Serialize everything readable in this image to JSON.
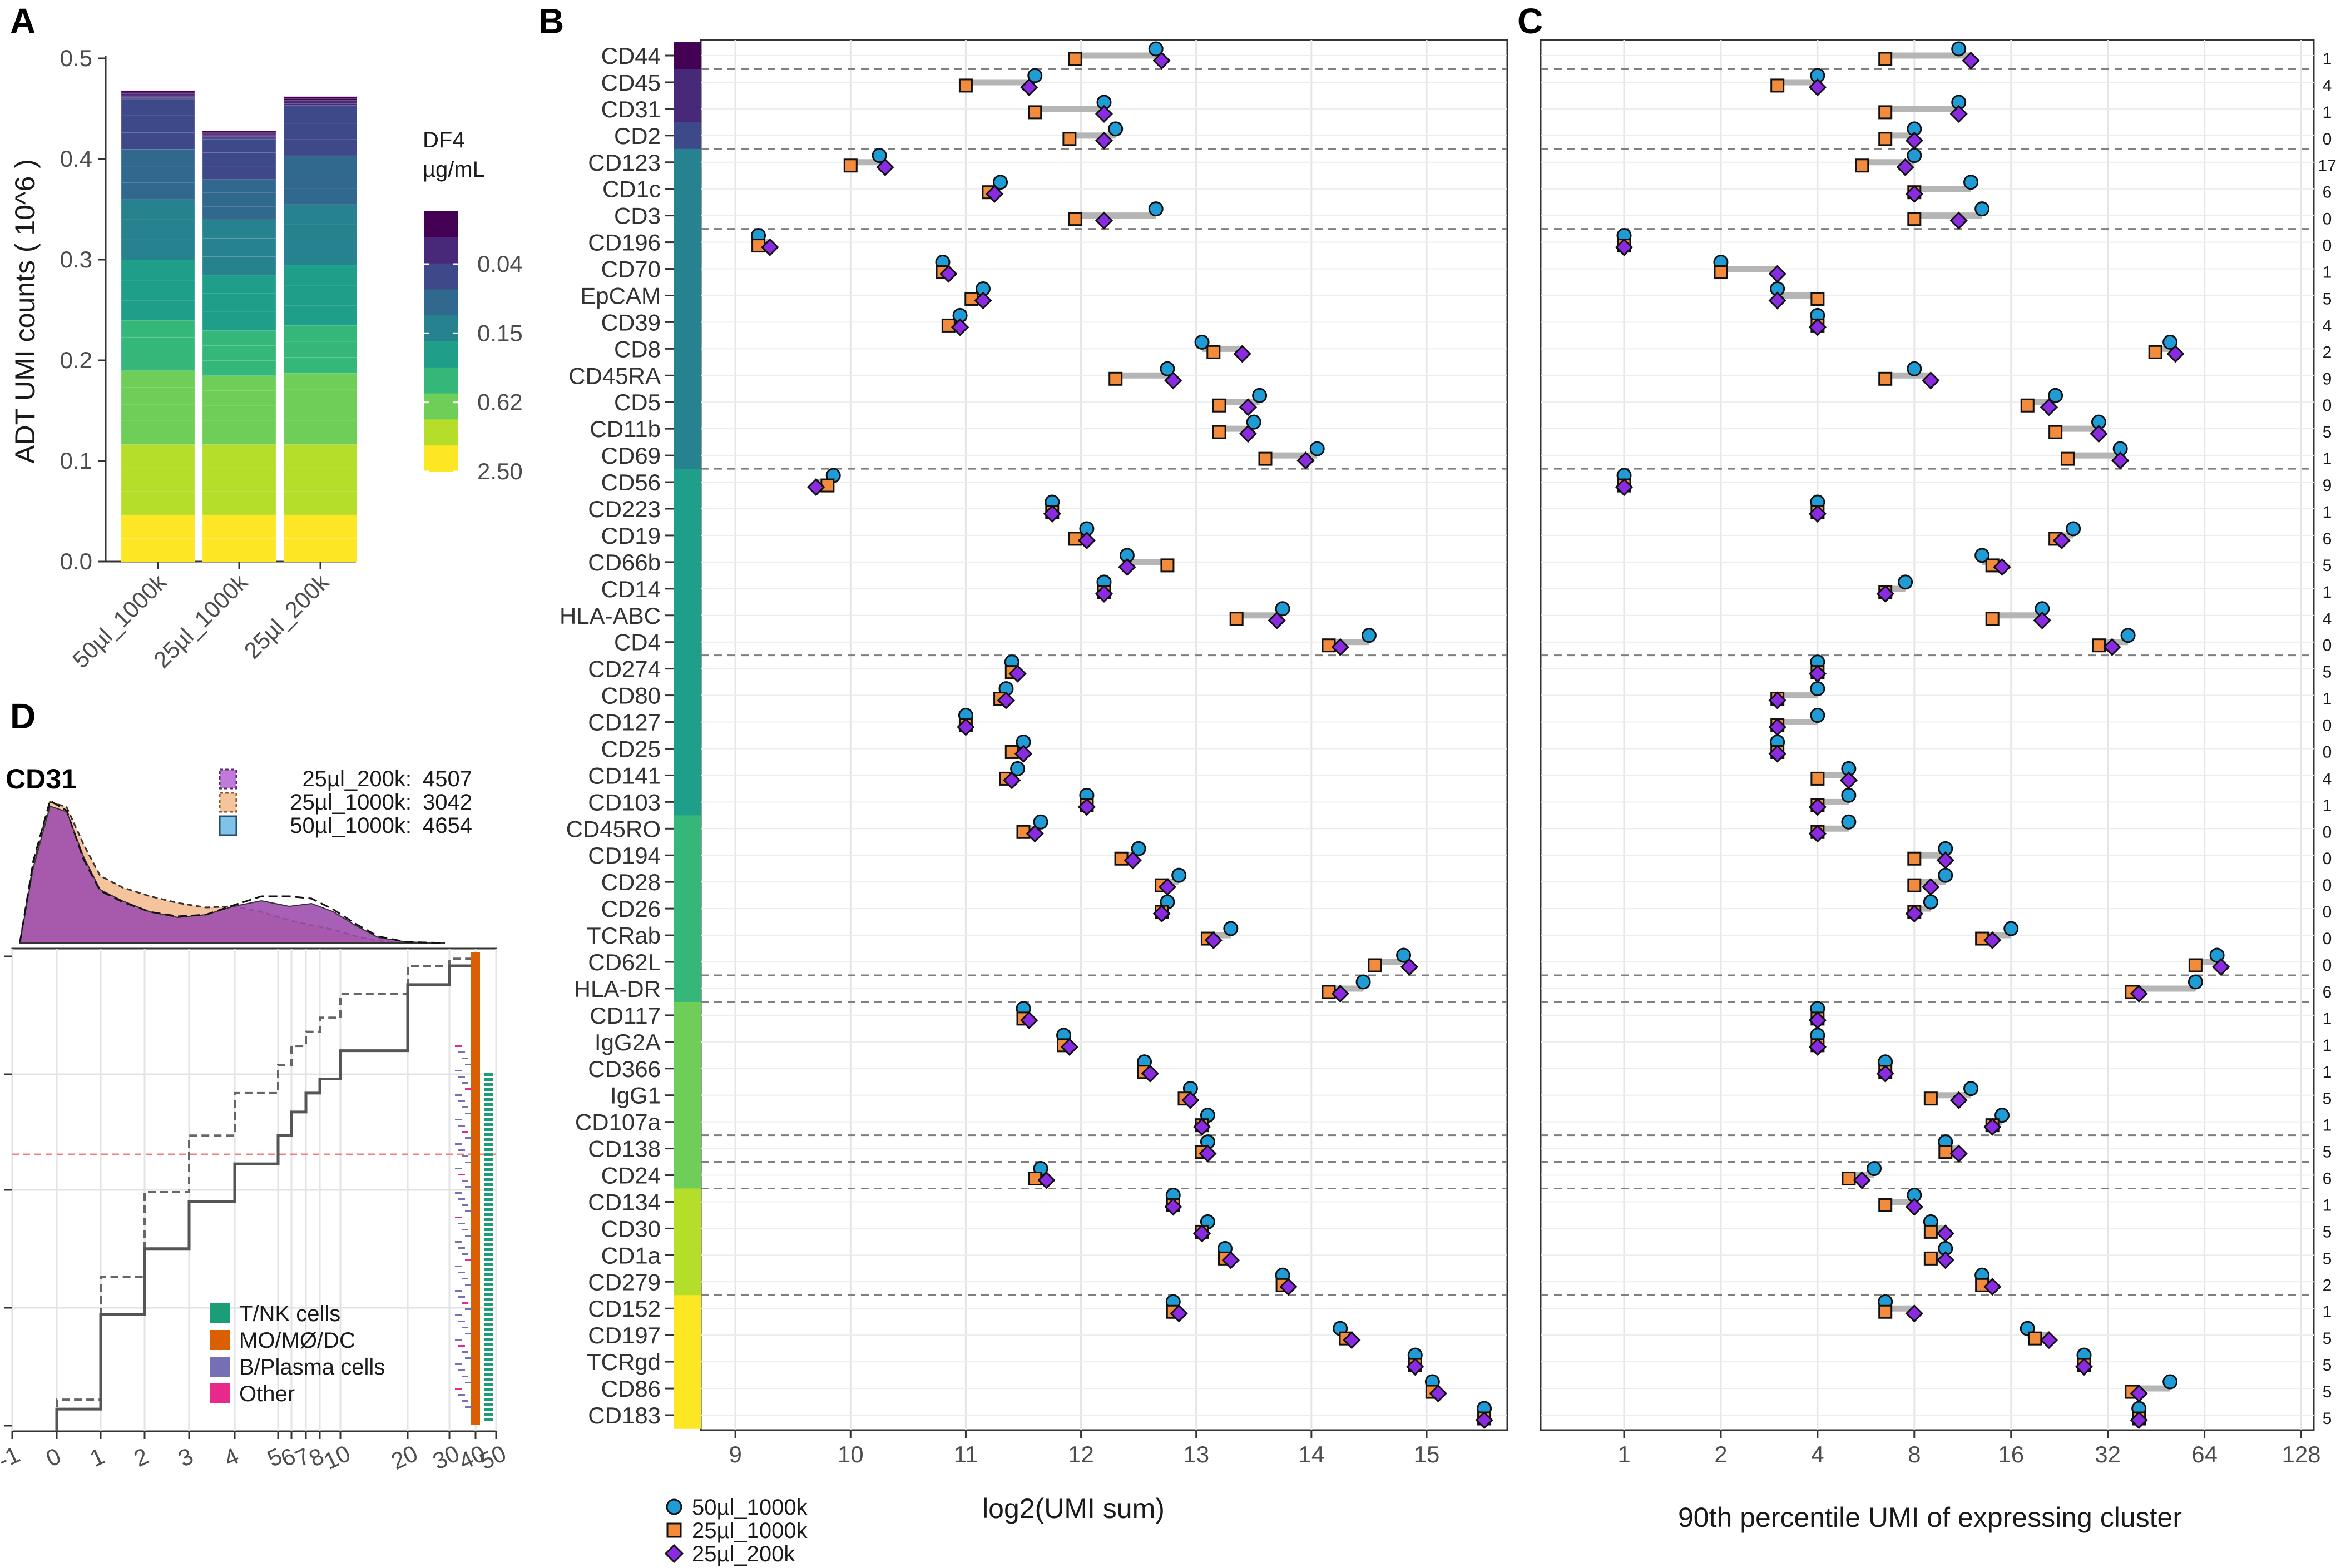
{
  "panel_labels": {
    "a": "A",
    "b": "B",
    "c": "C",
    "d": "D"
  },
  "colors": {
    "sample_50ul_1000k": "#1f9bd6",
    "sample_25ul_1000k": "#f28c3c",
    "sample_25ul_200k": "#8a2be2",
    "viridis": [
      "#fde725",
      "#b5de2b",
      "#6ece58",
      "#35b779",
      "#1f9e89",
      "#26828e",
      "#31688e",
      "#3e4989",
      "#482878",
      "#440154"
    ],
    "cell_types": {
      "tnk": "#1b9e77",
      "mo": "#d95f02",
      "b": "#7570b3",
      "other": "#e7298a"
    }
  },
  "chart_data": [
    {
      "type": "bar",
      "panel": "A",
      "stacked": true,
      "categories": [
        "50µl_1000k",
        "25µl_1000k",
        "25µl_200k"
      ],
      "totals": [
        0.468,
        0.428,
        0.462
      ],
      "segments_by_df4": [
        {
          "level": "2.50",
          "values": [
            0.14,
            0.14,
            0.14
          ]
        },
        {
          "level": "0.62",
          "values": [
            0.1,
            0.09,
            0.095
          ]
        },
        {
          "level": "0.15",
          "values": [
            0.12,
            0.11,
            0.12
          ]
        },
        {
          "level": "0.04",
          "values": [
            0.1,
            0.08,
            0.097
          ]
        },
        {
          "level": "top",
          "values": [
            0.008,
            0.008,
            0.01
          ]
        }
      ],
      "ylabel": "ADT UMI counts ( 10^6 )",
      "ylim": [
        0,
        0.5
      ],
      "yticks": [
        "0.0",
        "0.1",
        "0.2",
        "0.3",
        "0.4",
        "0.5"
      ],
      "legend": {
        "title_line1": "DF4",
        "title_line2": "µg/mL",
        "ticks": [
          "0.04",
          "0.15",
          "0.62",
          "2.50"
        ]
      }
    },
    {
      "type": "dot",
      "panel": "B",
      "xlabel": "log2(UMI sum)",
      "xlim": [
        8.7,
        15.7
      ],
      "xticks": [
        9,
        10,
        11,
        12,
        13,
        14,
        15
      ],
      "series_names": [
        "50µl_1000k",
        "25µl_1000k",
        "25µl_200k"
      ],
      "grid": true
    },
    {
      "type": "dot",
      "panel": "C",
      "xlabel": "90th percentile UMI of expressing cluster",
      "xscale": "log2",
      "xticks": [
        "1",
        "2",
        "4",
        "8",
        "16",
        "32",
        "64",
        "128"
      ]
    },
    {
      "type": "line",
      "panel": "D",
      "marker": "CD31",
      "legend": [
        {
          "label": "25µl_200k:",
          "count": "4507"
        },
        {
          "label": "25µl_1000k:",
          "count": "3042"
        },
        {
          "label": "50µl_1000k:",
          "count": "4654"
        }
      ],
      "xticks": [
        "-1",
        "0",
        "1",
        "2",
        "3",
        "4",
        "5",
        "6",
        "7",
        "8",
        "10",
        "20",
        "30",
        "40",
        "50"
      ],
      "cell_types": [
        "T/NK cells",
        "MO/MØ/DC",
        "B/Plasma cells",
        "Other"
      ],
      "step_x": [
        0,
        1,
        2,
        3,
        4,
        5,
        6,
        7,
        8,
        10,
        20,
        30,
        40
      ],
      "step_solid": [
        0.04,
        0.24,
        0.38,
        0.48,
        0.56,
        0.62,
        0.67,
        0.71,
        0.74,
        0.8,
        0.94,
        0.98,
        1.0
      ],
      "step_dashed": [
        0.06,
        0.32,
        0.5,
        0.62,
        0.71,
        0.77,
        0.81,
        0.84,
        0.87,
        0.92,
        0.98,
        0.995,
        1.0
      ]
    }
  ],
  "markers": [
    {
      "name": "CD44",
      "b": [
        12.65,
        11.95,
        12.7
      ],
      "c": [
        11,
        6.5,
        12
      ],
      "n": "1",
      "color": "#440154",
      "sep": true
    },
    {
      "name": "CD45",
      "b": [
        11.6,
        11.0,
        11.55
      ],
      "c": [
        4,
        3,
        4
      ],
      "n": "4",
      "color": "#482878"
    },
    {
      "name": "CD31",
      "b": [
        12.2,
        11.6,
        12.2
      ],
      "c": [
        11,
        6.5,
        11
      ],
      "n": "1",
      "color": "#482878"
    },
    {
      "name": "CD2",
      "b": [
        12.3,
        11.9,
        12.2
      ],
      "c": [
        8,
        6.5,
        8
      ],
      "n": "0",
      "color": "#3e4989",
      "sep": true
    },
    {
      "name": "CD123",
      "b": [
        10.25,
        10.0,
        10.3
      ],
      "c": [
        8,
        5.5,
        7.5
      ],
      "n": "17",
      "color": "#26828e"
    },
    {
      "name": "CD1c",
      "b": [
        11.3,
        11.2,
        11.25
      ],
      "c": [
        12,
        8,
        8
      ],
      "n": "6",
      "color": "#26828e"
    },
    {
      "name": "CD3",
      "b": [
        12.65,
        11.95,
        12.2
      ],
      "c": [
        13,
        8,
        11
      ],
      "n": "0",
      "color": "#26828e",
      "sep": true
    },
    {
      "name": "CD196",
      "b": [
        9.2,
        9.2,
        9.3
      ],
      "c": [
        1,
        1,
        1
      ],
      "n": "0",
      "color": "#26828e"
    },
    {
      "name": "CD70",
      "b": [
        10.8,
        10.8,
        10.85
      ],
      "c": [
        2,
        2,
        3
      ],
      "n": "1",
      "color": "#26828e"
    },
    {
      "name": "EpCAM",
      "b": [
        11.15,
        11.05,
        11.15
      ],
      "c": [
        3,
        4,
        3
      ],
      "n": "5",
      "color": "#26828e"
    },
    {
      "name": "CD39",
      "b": [
        10.95,
        10.85,
        10.95
      ],
      "c": [
        4,
        4,
        4
      ],
      "n": "4",
      "color": "#26828e"
    },
    {
      "name": "CD8",
      "b": [
        13.05,
        13.15,
        13.4
      ],
      "c": [
        50,
        45,
        52
      ],
      "n": "2",
      "color": "#26828e"
    },
    {
      "name": "CD45RA",
      "b": [
        12.75,
        12.3,
        12.8
      ],
      "c": [
        8,
        6.5,
        9
      ],
      "n": "9",
      "color": "#26828e"
    },
    {
      "name": "CD5",
      "b": [
        13.55,
        13.2,
        13.45
      ],
      "c": [
        22,
        18,
        21
      ],
      "n": "0",
      "color": "#26828e"
    },
    {
      "name": "CD11b",
      "b": [
        13.5,
        13.2,
        13.45
      ],
      "c": [
        30,
        22,
        30
      ],
      "n": "5",
      "color": "#26828e"
    },
    {
      "name": "CD69",
      "b": [
        14.05,
        13.6,
        13.95
      ],
      "c": [
        35,
        24,
        35
      ],
      "n": "1",
      "color": "#26828e",
      "sep": true
    },
    {
      "name": "CD56",
      "b": [
        9.85,
        9.8,
        9.7
      ],
      "c": [
        1,
        1,
        1
      ],
      "n": "9",
      "color": "#1f9e89"
    },
    {
      "name": "CD223",
      "b": [
        11.75,
        11.75,
        11.75
      ],
      "c": [
        4,
        4,
        4
      ],
      "n": "1",
      "color": "#1f9e89"
    },
    {
      "name": "CD19",
      "b": [
        12.05,
        11.95,
        12.05
      ],
      "c": [
        25,
        22,
        23
      ],
      "n": "6",
      "color": "#1f9e89"
    },
    {
      "name": "CD66b",
      "b": [
        12.4,
        12.75,
        12.4
      ],
      "c": [
        13,
        14,
        15
      ],
      "n": "5",
      "color": "#1f9e89"
    },
    {
      "name": "CD14",
      "b": [
        12.2,
        12.2,
        12.2
      ],
      "c": [
        7.5,
        6.5,
        6.5
      ],
      "n": "1",
      "color": "#1f9e89"
    },
    {
      "name": "HLA-ABC",
      "b": [
        13.75,
        13.35,
        13.7
      ],
      "c": [
        20,
        14,
        20
      ],
      "n": "4",
      "color": "#1f9e89"
    },
    {
      "name": "CD4",
      "b": [
        14.5,
        14.15,
        14.25
      ],
      "c": [
        37,
        30,
        33
      ],
      "n": "0",
      "color": "#1f9e89",
      "sep": true
    },
    {
      "name": "CD274",
      "b": [
        11.4,
        11.4,
        11.45
      ],
      "c": [
        4,
        4,
        4
      ],
      "n": "5",
      "color": "#1f9e89"
    },
    {
      "name": "CD80",
      "b": [
        11.35,
        11.3,
        11.35
      ],
      "c": [
        4,
        3,
        3
      ],
      "n": "1",
      "color": "#1f9e89"
    },
    {
      "name": "CD127",
      "b": [
        11.0,
        11.0,
        11.0
      ],
      "c": [
        4,
        3,
        3
      ],
      "n": "0",
      "color": "#1f9e89"
    },
    {
      "name": "CD25",
      "b": [
        11.5,
        11.4,
        11.5
      ],
      "c": [
        3,
        3,
        3
      ],
      "n": "0",
      "color": "#1f9e89"
    },
    {
      "name": "CD141",
      "b": [
        11.45,
        11.35,
        11.4
      ],
      "c": [
        5,
        4,
        5
      ],
      "n": "4",
      "color": "#1f9e89"
    },
    {
      "name": "CD103",
      "b": [
        12.05,
        12.05,
        12.05
      ],
      "c": [
        5,
        4,
        4
      ],
      "n": "1",
      "color": "#1f9e89"
    },
    {
      "name": "CD45RO",
      "b": [
        11.65,
        11.5,
        11.6
      ],
      "c": [
        5,
        4,
        4
      ],
      "n": "0",
      "color": "#35b779"
    },
    {
      "name": "CD194",
      "b": [
        12.5,
        12.35,
        12.45
      ],
      "c": [
        10,
        8,
        10
      ],
      "n": "0",
      "color": "#35b779"
    },
    {
      "name": "CD28",
      "b": [
        12.85,
        12.7,
        12.75
      ],
      "c": [
        10,
        8,
        9
      ],
      "n": "0",
      "color": "#35b779"
    },
    {
      "name": "CD26",
      "b": [
        12.75,
        12.7,
        12.7
      ],
      "c": [
        9,
        8,
        8
      ],
      "n": "0",
      "color": "#35b779"
    },
    {
      "name": "TCRab",
      "b": [
        13.3,
        13.1,
        13.15
      ],
      "c": [
        16,
        13,
        14
      ],
      "n": "0",
      "color": "#35b779"
    },
    {
      "name": "CD62L",
      "b": [
        14.8,
        14.55,
        14.85
      ],
      "c": [
        70,
        60,
        72
      ],
      "n": "0",
      "color": "#35b779",
      "sep": true
    },
    {
      "name": "HLA-DR",
      "b": [
        14.45,
        14.15,
        14.25
      ],
      "c": [
        60,
        38,
        40
      ],
      "n": "6",
      "color": "#35b779",
      "sep": true
    },
    {
      "name": "CD117",
      "b": [
        11.5,
        11.5,
        11.55
      ],
      "c": [
        4,
        4,
        4
      ],
      "n": "1",
      "color": "#6ece58"
    },
    {
      "name": "IgG2A",
      "b": [
        11.85,
        11.85,
        11.9
      ],
      "c": [
        4,
        4,
        4
      ],
      "n": "1",
      "color": "#6ece58"
    },
    {
      "name": "CD366",
      "b": [
        12.55,
        12.55,
        12.6
      ],
      "c": [
        6.5,
        6.5,
        6.5
      ],
      "n": "1",
      "color": "#6ece58"
    },
    {
      "name": "IgG1",
      "b": [
        12.95,
        12.9,
        12.95
      ],
      "c": [
        12,
        9,
        11
      ],
      "n": "5",
      "color": "#6ece58"
    },
    {
      "name": "CD107a",
      "b": [
        13.1,
        13.05,
        13.05
      ],
      "c": [
        15,
        14,
        14
      ],
      "n": "1",
      "color": "#6ece58",
      "sep": true
    },
    {
      "name": "CD138",
      "b": [
        13.1,
        13.05,
        13.1
      ],
      "c": [
        10,
        10,
        11
      ],
      "n": "5",
      "color": "#6ece58",
      "sep": true
    },
    {
      "name": "CD24",
      "b": [
        11.65,
        11.6,
        11.7
      ],
      "c": [
        6,
        5,
        5.5
      ],
      "n": "6",
      "color": "#6ece58",
      "sep": true
    },
    {
      "name": "CD134",
      "b": [
        12.8,
        12.8,
        12.8
      ],
      "c": [
        8,
        6.5,
        8
      ],
      "n": "1",
      "color": "#b5de2b"
    },
    {
      "name": "CD30",
      "b": [
        13.1,
        13.05,
        13.05
      ],
      "c": [
        9,
        9,
        10
      ],
      "n": "5",
      "color": "#b5de2b"
    },
    {
      "name": "CD1a",
      "b": [
        13.25,
        13.25,
        13.3
      ],
      "c": [
        10,
        9,
        10
      ],
      "n": "5",
      "color": "#b5de2b"
    },
    {
      "name": "CD279",
      "b": [
        13.75,
        13.75,
        13.8
      ],
      "c": [
        13,
        13,
        14
      ],
      "n": "2",
      "color": "#b5de2b",
      "sep": true
    },
    {
      "name": "CD152",
      "b": [
        12.8,
        12.8,
        12.85
      ],
      "c": [
        6.5,
        6.5,
        8
      ],
      "n": "1",
      "color": "#fde725"
    },
    {
      "name": "CD197",
      "b": [
        14.25,
        14.3,
        14.35
      ],
      "c": [
        18,
        19,
        21
      ],
      "n": "5",
      "color": "#fde725"
    },
    {
      "name": "TCRgd",
      "b": [
        14.9,
        14.9,
        14.9
      ],
      "c": [
        27,
        27,
        27
      ],
      "n": "5",
      "color": "#fde725"
    },
    {
      "name": "CD86",
      "b": [
        15.05,
        15.05,
        15.1
      ],
      "c": [
        50,
        38,
        40
      ],
      "n": "5",
      "color": "#fde725"
    },
    {
      "name": "CD183",
      "b": [
        15.5,
        15.5,
        15.5
      ],
      "c": [
        40,
        40,
        40
      ],
      "n": "5",
      "color": "#fde725"
    }
  ]
}
